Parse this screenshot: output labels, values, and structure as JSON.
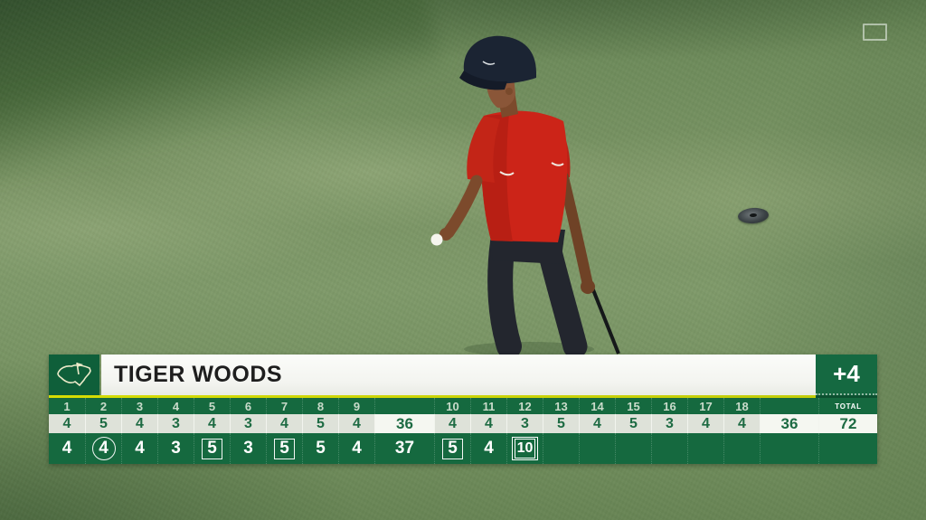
{
  "header": {
    "player_name": "TIGER WOODS",
    "to_par": "+4"
  },
  "scorecard": {
    "total_label": "TOTAL",
    "front_holes": [
      "1",
      "2",
      "3",
      "4",
      "5",
      "6",
      "7",
      "8",
      "9"
    ],
    "back_holes": [
      "10",
      "11",
      "12",
      "13",
      "14",
      "15",
      "16",
      "17",
      "18"
    ],
    "front_pars": [
      "4",
      "5",
      "4",
      "3",
      "4",
      "3",
      "4",
      "5",
      "4"
    ],
    "out_par": "36",
    "back_pars": [
      "4",
      "4",
      "3",
      "5",
      "4",
      "5",
      "3",
      "4",
      "4"
    ],
    "in_par": "36",
    "total_par": "72",
    "front_scores": [
      {
        "value": "4"
      },
      {
        "value": "4",
        "mark": "circle"
      },
      {
        "value": "4"
      },
      {
        "value": "3"
      },
      {
        "value": "5",
        "mark": "square"
      },
      {
        "value": "3"
      },
      {
        "value": "5",
        "mark": "square"
      },
      {
        "value": "5"
      },
      {
        "value": "4"
      }
    ],
    "out_score": "37",
    "back_scores": [
      {
        "value": "5",
        "mark": "square"
      },
      {
        "value": "4"
      },
      {
        "value": "10",
        "mark": "double-square"
      },
      {
        "value": ""
      },
      {
        "value": ""
      },
      {
        "value": ""
      },
      {
        "value": ""
      },
      {
        "value": ""
      },
      {
        "value": ""
      }
    ],
    "in_score": "",
    "total_score": ""
  },
  "icons": {
    "tournament_logo": "masters-map-flag-logo",
    "watermark": "network-bug-ghost"
  },
  "colors": {
    "masters_green": "#15693f",
    "logo_box_green": "#0f5f3a",
    "accent_yellow": "#ccd405",
    "par_row_bg": "#dee2d9",
    "sum_cell_bg": "#f5f7f1",
    "header_bar_bg": "#f6f7f4",
    "shirt_red": "#cc2418"
  }
}
